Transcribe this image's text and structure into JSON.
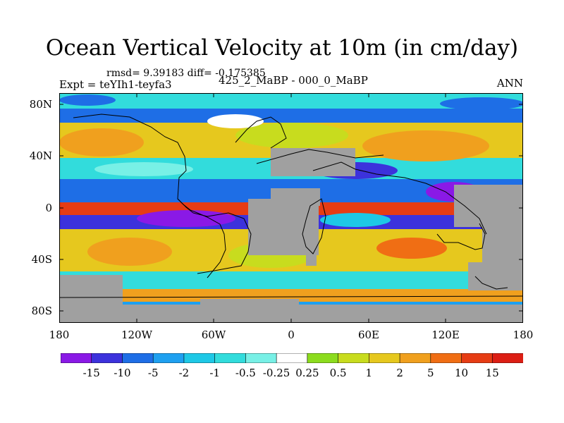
{
  "title": "Ocean Vertical Velocity at 10m (in cm/day)",
  "stats": "rmsd= 9.39183 diff= -0.175385",
  "experiment": "Expt = teYIh1-teyfa3",
  "comparison": "425_2_MaBP - 000_0_MaBP",
  "season": "ANN",
  "lat_labels": [
    "80N",
    "40N",
    "0",
    "40S",
    "80S"
  ],
  "lon_labels": [
    "180",
    "120W",
    "60W",
    "0",
    "60E",
    "120E",
    "180"
  ],
  "colorbar": {
    "labels": [
      "-15",
      "-10",
      "-5",
      "-2",
      "-1",
      "-0.5",
      "-0.25",
      "0.25",
      "0.5",
      "1",
      "2",
      "5",
      "10",
      "15"
    ],
    "colors": [
      "#8a19e6",
      "#3c32dc",
      "#1e6ee6",
      "#1ea0f0",
      "#1ec8e6",
      "#32dcdc",
      "#78f0e6",
      "#ffffff",
      "#8cdc1e",
      "#c8dc1e",
      "#e6c81e",
      "#f0a01e",
      "#f06e14",
      "#e63c14",
      "#dc1e14"
    ]
  },
  "colors": {
    "land": "#a0a0a0",
    "outline": "#000000"
  }
}
